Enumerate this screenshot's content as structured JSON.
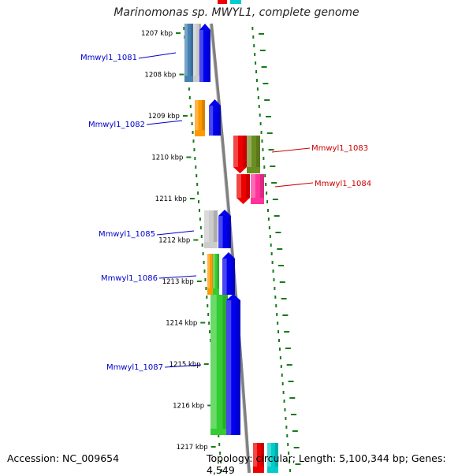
{
  "title": "Marinomonas sp. MWYL1, complete genome",
  "accession": "Accession: NC_009654",
  "topology": "Topology: circular; Length: 5,100,344 bp; Genes: 4,549",
  "scale": {
    "ticks": [
      "1207 kbp",
      "1208 kbp",
      "1209 kbp",
      "1210 kbp",
      "1211 kbp",
      "1212 kbp",
      "1213 kbp",
      "1214 kbp",
      "1215 kbp",
      "1216 kbp",
      "1217 kbp"
    ]
  },
  "genes": [
    {
      "label": "Mmwyl1_1081",
      "strand": "forward",
      "color": "#0000cc"
    },
    {
      "label": "Mmwyl1_1082",
      "strand": "forward",
      "color": "#0000cc"
    },
    {
      "label": "Mmwyl1_1083",
      "strand": "reverse",
      "color": "#cc0000"
    },
    {
      "label": "Mmwyl1_1084",
      "strand": "reverse",
      "color": "#cc0000"
    },
    {
      "label": "Mmwyl1_1085",
      "strand": "forward",
      "color": "#0000cc"
    },
    {
      "label": "Mmwyl1_1086",
      "strand": "forward",
      "color": "#0000cc"
    },
    {
      "label": "Mmwyl1_1087",
      "strand": "forward",
      "color": "#0000cc"
    }
  ],
  "colors": {
    "forward_cds": "#0000ee",
    "reverse_cds": "#ee0000",
    "backbone": "#808080",
    "tick": "#1a7a1a",
    "cog_green": "#33cc33",
    "cog_orange": "#ff9900",
    "cog_grey": "#cccccc",
    "cog_steelblue": "#4682b4",
    "cog_olive": "#6b8e23",
    "cog_pink": "#ff3399",
    "cog_cyan": "#00cccc"
  }
}
